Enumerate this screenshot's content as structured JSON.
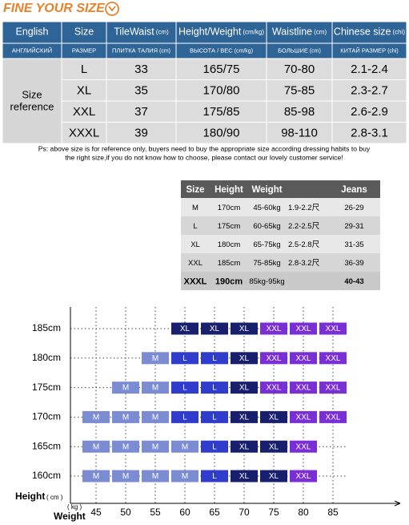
{
  "header": {
    "title": "FINE YOUR SIZE"
  },
  "table1": {
    "header_en": [
      {
        "label": "English"
      },
      {
        "label": "Size"
      },
      {
        "label": "TileWaist",
        "unit": "(cm)"
      },
      {
        "label": "Height/Weight",
        "unit": "(cm/kg)"
      },
      {
        "label": "Waistline",
        "unit": "(cm)"
      },
      {
        "label": "Chinese size",
        "unit": "(chi)"
      }
    ],
    "header_ru": [
      {
        "label": "АНГЛИЙСКИЙ"
      },
      {
        "label": "РАЗМЕР"
      },
      {
        "label": "ПЛИТКА ТАЛИЯ",
        "unit": "(cm)"
      },
      {
        "label": "ВЫСОТА / ВЕС",
        "unit": "(cm/kg)"
      },
      {
        "label": "БОЛЬШИЕ",
        "unit": "(cm)"
      },
      {
        "label": "КИТАЙ РАЗМЕР",
        "unit": "(chi)"
      }
    ],
    "row_label": [
      "Size",
      "reference"
    ],
    "rows": [
      [
        "L",
        "33",
        "165/75",
        "70-80",
        "2.1-2.4"
      ],
      [
        "XL",
        "35",
        "170/80",
        "75-85",
        "2.3-2.7"
      ],
      [
        "XXL",
        "37",
        "175/85",
        "85-98",
        "2.6-2.9"
      ],
      [
        "XXXL",
        "39",
        "180/90",
        "98-110",
        "2.8-3.1"
      ]
    ]
  },
  "note": [
    "Ps: above size is for reference only, buyers need to buy the appropriate size according dressing habits to buy",
    "the right size,if you do not know how to choose, please contact our lovely customer service!"
  ],
  "table2": {
    "header": [
      "Size",
      "Height",
      "Weight",
      "Jeans"
    ],
    "rows": [
      [
        "M",
        "170cm",
        "45-60kg",
        "1.9-2.2尺",
        "26-29"
      ],
      [
        "L",
        "175cm",
        "60-65kg",
        "2.2-2.5尺",
        "29-31"
      ],
      [
        "XL",
        "180cm",
        "65-75kg",
        "2.5-2.8尺",
        "31-35"
      ],
      [
        "XXL",
        "185cm",
        "75-85kg",
        "2.8-3.2尺",
        "36-39"
      ],
      [
        "XXXL",
        "190cm",
        "85kg-95kg",
        null,
        "40-43"
      ]
    ]
  },
  "grid": {
    "heights": [
      "185cm",
      "180cm",
      "175cm",
      "170cm",
      "165cm",
      "160cm"
    ],
    "weights": [
      "45",
      "50",
      "55",
      "60",
      "65",
      "70",
      "75",
      "80",
      "85"
    ],
    "height_label": "Height",
    "height_unit": "( cm )",
    "weight_label": "Weight",
    "weight_unit": "( kg )",
    "size_colors": {
      "M": "#7b8cd2",
      "L": "#2f3ccc",
      "XL": "#18206e",
      "XXL": "#7a2fd6"
    },
    "cells": [
      [
        null,
        null,
        null,
        "XL",
        "XL",
        "XL",
        "XXL",
        "XXL",
        "XXL"
      ],
      [
        null,
        null,
        "M",
        "L",
        "L",
        "XL",
        "XXL",
        "XXL",
        "XXL"
      ],
      [
        null,
        "M",
        "M",
        "L",
        "L",
        "XL",
        "XXL",
        "XXL",
        "XXL"
      ],
      [
        "M",
        "M",
        "M",
        "L",
        "L",
        "XL",
        "XL",
        "XXL",
        "XXL"
      ],
      [
        "M",
        "M",
        "M",
        "M",
        "L",
        "XL",
        "XL",
        "XXL",
        null
      ],
      [
        "M",
        "M",
        "M",
        "M",
        "L",
        "XL",
        "XL",
        "XXL",
        null
      ]
    ]
  }
}
